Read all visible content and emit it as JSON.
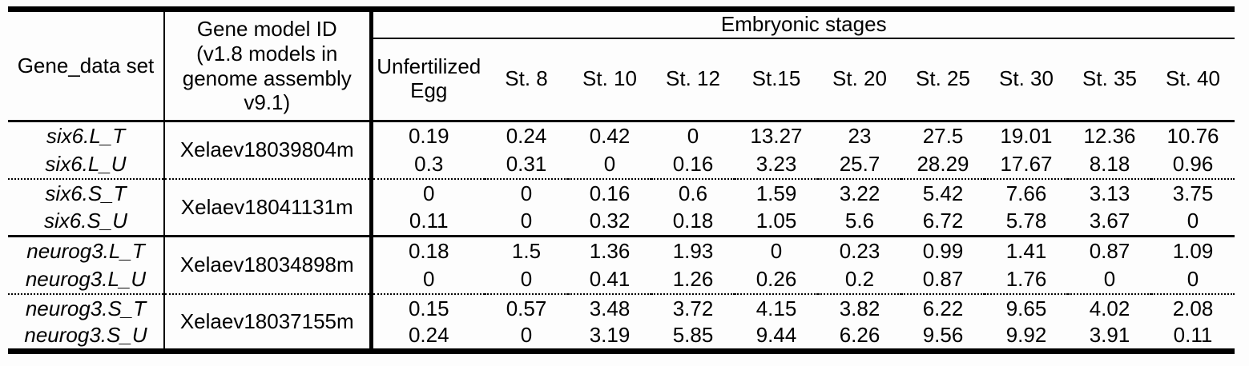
{
  "table": {
    "col1_header": "Gene_data set",
    "col2_header": "Gene model ID\n(v1.8 models in\ngenome assembly\nv9.1)",
    "stages_header": "Embryonic stages",
    "stage_columns": [
      "Unfertilized\nEgg",
      "St. 8",
      "St. 10",
      "St. 12",
      "St.15",
      "St. 20",
      "St. 25",
      "St. 30",
      "St. 35",
      "St. 40"
    ],
    "groups": [
      {
        "gene_rows": [
          "six6.L_T",
          "six6.L_U"
        ],
        "gene_model_id": "Xelaev18039804m",
        "values": [
          [
            "0.19",
            "0.24",
            "0.42",
            "0",
            "13.27",
            "23",
            "27.5",
            "19.01",
            "12.36",
            "10.76"
          ],
          [
            "0.3",
            "0.31",
            "0",
            "0.16",
            "3.23",
            "25.7",
            "28.29",
            "17.67",
            "8.18",
            "0.96"
          ]
        ],
        "separator_after": "dotted"
      },
      {
        "gene_rows": [
          "six6.S_T",
          "six6.S_U"
        ],
        "gene_model_id": "Xelaev18041131m",
        "values": [
          [
            "0",
            "0",
            "0.16",
            "0.6",
            "1.59",
            "3.22",
            "5.42",
            "7.66",
            "3.13",
            "3.75"
          ],
          [
            "0.11",
            "0",
            "0.32",
            "0.18",
            "1.05",
            "5.6",
            "6.72",
            "5.78",
            "3.67",
            "0"
          ]
        ],
        "separator_after": "solid"
      },
      {
        "gene_rows": [
          "neurog3.L_T",
          "neurog3.L_U"
        ],
        "gene_model_id": "Xelaev18034898m",
        "values": [
          [
            "0.18",
            "1.5",
            "1.36",
            "1.93",
            "0",
            "0.23",
            "0.99",
            "1.41",
            "0.87",
            "1.09"
          ],
          [
            "0",
            "0",
            "0.41",
            "1.26",
            "0.26",
            "0.2",
            "0.87",
            "1.76",
            "0",
            "0"
          ]
        ],
        "separator_after": "dotted"
      },
      {
        "gene_rows": [
          "neurog3.S_T",
          "neurog3.S_U"
        ],
        "gene_model_id": "Xelaev18037155m",
        "values": [
          [
            "0.15",
            "0.57",
            "3.48",
            "3.72",
            "4.15",
            "3.82",
            "6.22",
            "9.65",
            "4.02",
            "2.08"
          ],
          [
            "0.24",
            "0",
            "3.19",
            "5.85",
            "9.44",
            "6.26",
            "9.56",
            "9.92",
            "3.91",
            "0.11"
          ]
        ],
        "separator_after": "none"
      }
    ]
  }
}
